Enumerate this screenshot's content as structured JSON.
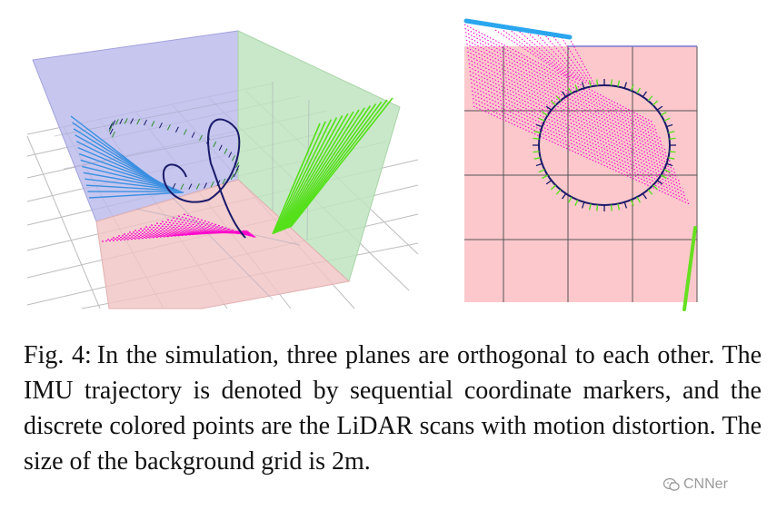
{
  "caption": {
    "label": "Fig. 4:",
    "text": "In the simulation, three planes are orthogonal to each other. The IMU trajectory is denoted by sequential coordinate markers, and the discrete colored points are the LiDAR scans with motion distortion. The size of the background grid is 2m."
  },
  "watermark": {
    "text": "CNNer",
    "icon": "wechat-icon"
  },
  "colors": {
    "plane_blue": "#b9b9ec",
    "plane_green": "#bfe4bf",
    "plane_red": "#f2c5c5",
    "scan_blue": "#3a8fe0",
    "scan_green": "#55e01a",
    "scan_magenta": "#ff00cc",
    "trajectory": "#1a1a6a",
    "grid": "#b8b8b8"
  }
}
